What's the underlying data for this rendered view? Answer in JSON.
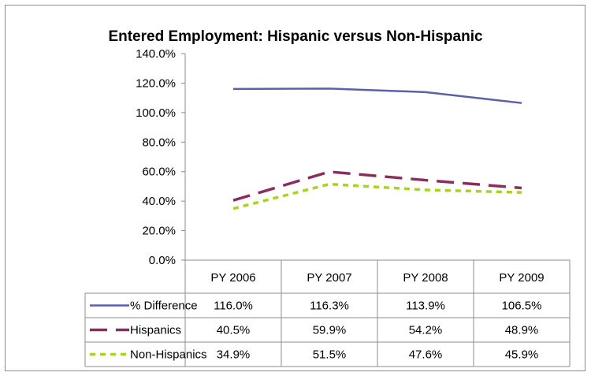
{
  "chart_data": {
    "type": "line",
    "title": "Entered Employment: Hispanic versus Non-Hispanic",
    "categories": [
      "PY 2006",
      "PY 2007",
      "PY 2008",
      "PY 2009"
    ],
    "ylim": [
      0,
      140
    ],
    "yticks": [
      "0.0%",
      "20.0%",
      "40.0%",
      "60.0%",
      "80.0%",
      "100.0%",
      "120.0%",
      "140.0%"
    ],
    "grid": false,
    "legend": "data-table",
    "series": [
      {
        "name": "% Difference",
        "values": [
          116.0,
          116.3,
          113.9,
          106.5
        ],
        "labels": [
          "116.0%",
          "116.3%",
          "113.9%",
          "106.5%"
        ],
        "color": "#5b61a8",
        "dash": "solid"
      },
      {
        "name": "Hispanics",
        "values": [
          40.5,
          59.9,
          54.2,
          48.9
        ],
        "labels": [
          "40.5%",
          "59.9%",
          "54.2%",
          "48.9%"
        ],
        "color": "#8b2d5c",
        "dash": "long-dash"
      },
      {
        "name": "Non-Hispanics",
        "values": [
          34.9,
          51.5,
          47.6,
          45.9
        ],
        "labels": [
          "34.9%",
          "51.5%",
          "47.6%",
          "45.9%"
        ],
        "color": "#a6d61a",
        "dash": "short-dash"
      }
    ]
  }
}
